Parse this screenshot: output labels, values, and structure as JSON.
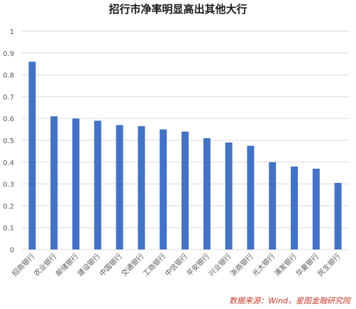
{
  "title": "招行市净率明显高出其他大行",
  "source": "数据来源：Wind，星图金融研究院",
  "colors": {
    "bar": "#4472C4",
    "grid": "#d9d9d9",
    "axis_text": "#595959"
  },
  "chart_data": {
    "type": "bar",
    "categories": [
      "招商银行",
      "农业银行",
      "邮储银行",
      "建设银行",
      "中国银行",
      "交通银行",
      "工商银行",
      "中信银行",
      "平安银行",
      "兴业银行",
      "浙商银行",
      "光大银行",
      "浦发银行",
      "华夏银行",
      "民生银行"
    ],
    "values": [
      0.86,
      0.61,
      0.6,
      0.59,
      0.57,
      0.565,
      0.55,
      0.54,
      0.51,
      0.49,
      0.475,
      0.4,
      0.38,
      0.37,
      0.305
    ],
    "ylim": [
      0,
      1
    ],
    "yticks": [
      "0",
      "0.1",
      "0.2",
      "0.3",
      "0.4",
      "0.5",
      "0.6",
      "0.7",
      "0.8",
      "0.9",
      "1"
    ],
    "grid": true,
    "legend": "none"
  }
}
